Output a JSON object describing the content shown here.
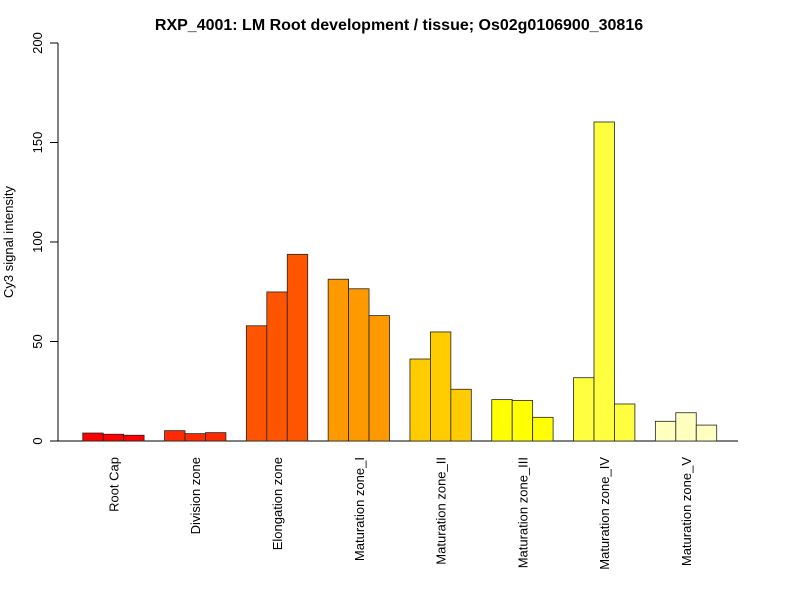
{
  "chart_data": {
    "type": "bar",
    "title": "RXP_4001: LM Root development / tissue; Os02g0106900_30816",
    "xlabel": "",
    "ylabel": "Cy3 signal intensity",
    "ylim": [
      0,
      200
    ],
    "yticks": [
      0,
      50,
      100,
      150,
      200
    ],
    "ytick_labels": [
      "0",
      "50",
      "100",
      "150",
      "200"
    ],
    "grid": false,
    "legend": "none",
    "categories": [
      "Root Cap",
      "Division zone",
      "Elongation zone",
      "Maturation zone_I",
      "Maturation zone_II",
      "Maturation zone_III",
      "Maturation zone_IV",
      "Maturation zone_V"
    ],
    "colors": [
      "#FF0000",
      "#FF2A00",
      "#FF5500",
      "#FF9900",
      "#FFCC00",
      "#FFFF00",
      "#FFFF40",
      "#FFFFBF"
    ],
    "replicates_per_category": 3,
    "values": [
      [
        4.0,
        3.4,
        2.9
      ],
      [
        5.2,
        3.7,
        4.2
      ],
      [
        57.9,
        74.9,
        93.8
      ],
      [
        81.3,
        76.5,
        63.0
      ],
      [
        41.2,
        54.8,
        26.0
      ],
      [
        20.8,
        20.4,
        11.9
      ],
      [
        31.8,
        160.3,
        18.6
      ],
      [
        9.9,
        14.2,
        8.0
      ]
    ]
  }
}
